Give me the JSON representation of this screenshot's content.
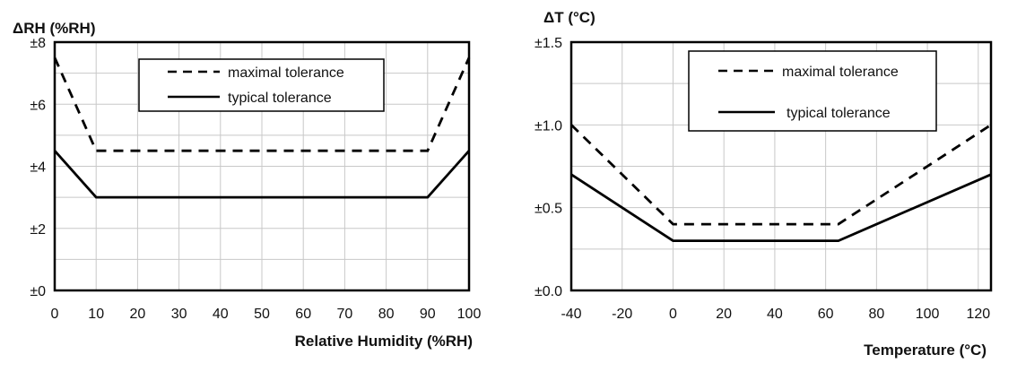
{
  "chart_data": [
    {
      "type": "line",
      "title": "",
      "ylabel": "ΔRH (%RH)",
      "xlabel": "Relative Humidity (%RH)",
      "xlim": [
        0,
        100
      ],
      "ylim": [
        0,
        8
      ],
      "xticks": [
        0,
        10,
        20,
        30,
        40,
        50,
        60,
        70,
        80,
        90,
        100
      ],
      "xtick_labels": [
        "0",
        "10",
        "20",
        "30",
        "40",
        "50",
        "60",
        "70",
        "80",
        "90",
        "100"
      ],
      "yticks": [
        0,
        2,
        4,
        6,
        8
      ],
      "ytick_labels": [
        "±0",
        "±2",
        "±4",
        "±6",
        "±8"
      ],
      "grid": true,
      "legend_position": "top-center",
      "series": [
        {
          "name": "maximal tolerance",
          "style": "dashed",
          "color": "#000000",
          "x": [
            0,
            10,
            90,
            100
          ],
          "y": [
            7.5,
            4.5,
            4.5,
            7.5
          ]
        },
        {
          "name": "typical tolerance",
          "style": "solid",
          "color": "#000000",
          "x": [
            0,
            10,
            90,
            100
          ],
          "y": [
            4.5,
            3,
            3,
            4.5
          ]
        }
      ]
    },
    {
      "type": "line",
      "title": "",
      "ylabel": "ΔT (°C)",
      "xlabel": "Temperature (°C)",
      "xlim": [
        -40,
        125
      ],
      "ylim": [
        0,
        1.5
      ],
      "xticks": [
        -40,
        -20,
        0,
        20,
        40,
        60,
        80,
        100,
        120
      ],
      "xtick_labels": [
        "-40",
        "-20",
        "0",
        "20",
        "40",
        "60",
        "80",
        "100",
        "120"
      ],
      "yticks": [
        0,
        0.5,
        1.0,
        1.5
      ],
      "ytick_labels": [
        "±0.0",
        "±0.5",
        "±1.0",
        "±1.5"
      ],
      "grid": true,
      "legend_position": "top-center",
      "series": [
        {
          "name": "maximal tolerance",
          "style": "dashed",
          "color": "#000000",
          "x": [
            -40,
            0,
            65,
            125
          ],
          "y": [
            1.0,
            0.4,
            0.4,
            1.0
          ]
        },
        {
          "name": "typical tolerance",
          "style": "solid",
          "color": "#000000",
          "x": [
            -40,
            0,
            65,
            125
          ],
          "y": [
            0.7,
            0.3,
            0.3,
            0.7
          ]
        }
      ]
    }
  ]
}
